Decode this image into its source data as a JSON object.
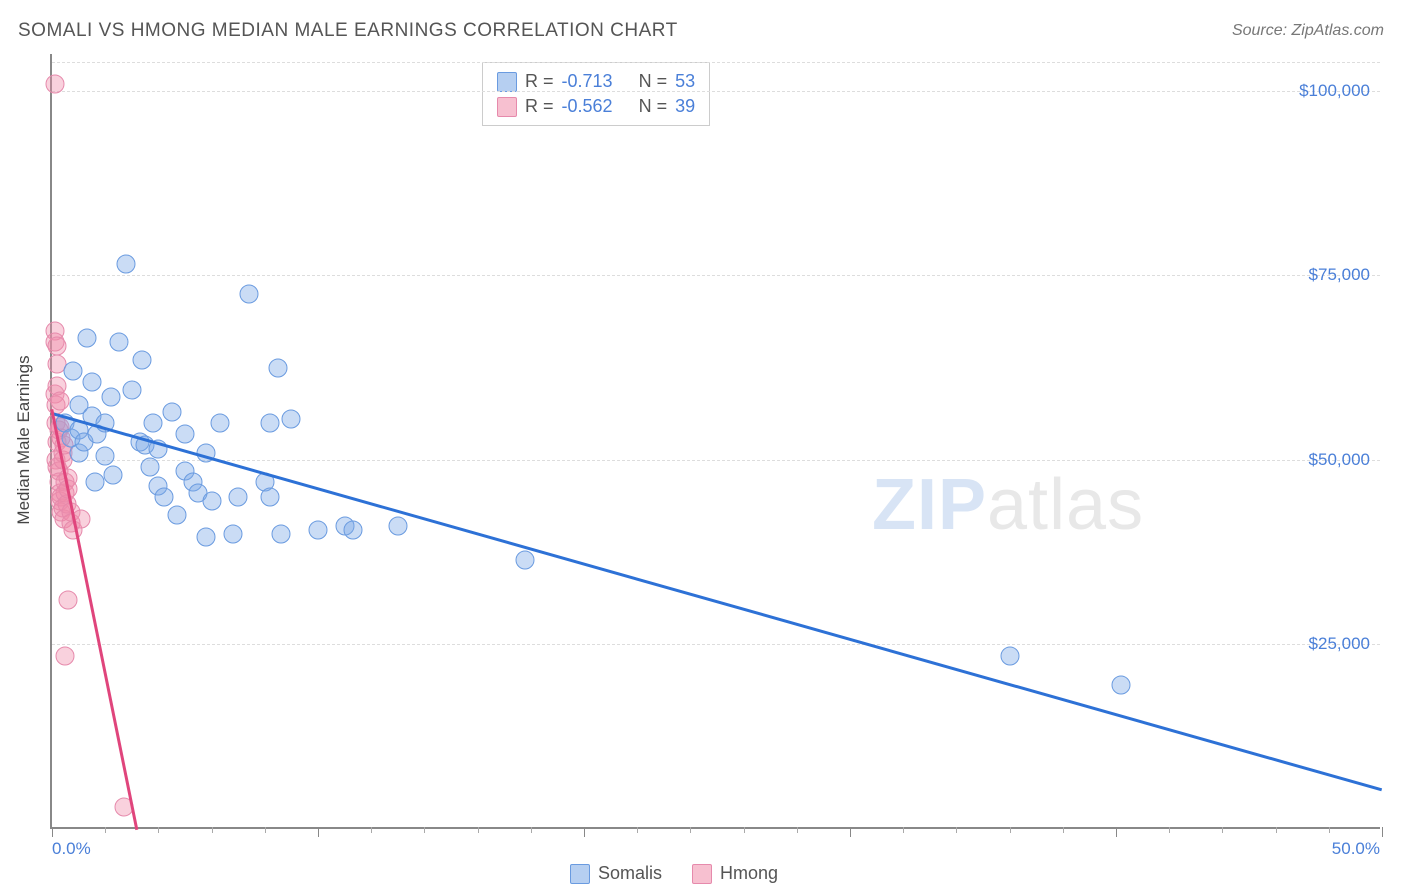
{
  "title": "SOMALI VS HMONG MEDIAN MALE EARNINGS CORRELATION CHART",
  "source": "Source: ZipAtlas.com",
  "ylabel": "Median Male Earnings",
  "watermark_a": "ZIP",
  "watermark_b": "atlas",
  "chart": {
    "type": "scatter",
    "xlim": [
      0,
      50
    ],
    "ylim": [
      0,
      105000
    ],
    "y_ticks": [
      25000,
      50000,
      75000,
      100000
    ],
    "y_tick_labels": [
      "$25,000",
      "$50,000",
      "$75,000",
      "$100,000"
    ],
    "x_tick_left": "0.0%",
    "x_tick_right": "50.0%",
    "x_major_step": 10,
    "x_minor_step": 2,
    "grid_color": "#dddddd",
    "axis_color": "#888888",
    "background": "#ffffff",
    "marker_radius": 9.5,
    "series": {
      "somalis": {
        "label": "Somalis",
        "fill": "rgba(122,168,230,0.40)",
        "stroke": "#6a9be0",
        "line_color": "#2d71d6",
        "line_width": 2.5,
        "R": "-0.713",
        "N": "53",
        "trend": {
          "x1": 0,
          "y1": 56500,
          "x2": 50,
          "y2": 5500
        },
        "points": [
          [
            0.5,
            55000
          ],
          [
            0.7,
            53000
          ],
          [
            0.8,
            62000
          ],
          [
            1.0,
            57500
          ],
          [
            1.0,
            54000
          ],
          [
            1.0,
            51000
          ],
          [
            1.2,
            52500
          ],
          [
            1.3,
            66500
          ],
          [
            1.5,
            60500
          ],
          [
            1.5,
            56000
          ],
          [
            1.6,
            47000
          ],
          [
            1.7,
            53500
          ],
          [
            2.0,
            55000
          ],
          [
            2.0,
            50500
          ],
          [
            2.2,
            58500
          ],
          [
            2.3,
            48000
          ],
          [
            2.5,
            66000
          ],
          [
            2.8,
            76500
          ],
          [
            3.0,
            59500
          ],
          [
            3.3,
            52500
          ],
          [
            3.4,
            63500
          ],
          [
            3.5,
            52000
          ],
          [
            3.7,
            49000
          ],
          [
            3.8,
            55000
          ],
          [
            4.0,
            51500
          ],
          [
            4.0,
            46500
          ],
          [
            4.2,
            45000
          ],
          [
            4.5,
            56500
          ],
          [
            4.7,
            42500
          ],
          [
            5.0,
            53500
          ],
          [
            5.0,
            48500
          ],
          [
            5.3,
            47000
          ],
          [
            5.5,
            45500
          ],
          [
            5.8,
            51000
          ],
          [
            5.8,
            39500
          ],
          [
            6.0,
            44500
          ],
          [
            6.3,
            55000
          ],
          [
            6.8,
            40000
          ],
          [
            7.0,
            45000
          ],
          [
            7.4,
            72500
          ],
          [
            8.0,
            47000
          ],
          [
            8.2,
            55000
          ],
          [
            8.2,
            45000
          ],
          [
            8.5,
            62500
          ],
          [
            8.6,
            40000
          ],
          [
            9.0,
            55500
          ],
          [
            10.0,
            40500
          ],
          [
            11.0,
            41000
          ],
          [
            11.3,
            40500
          ],
          [
            13.0,
            41000
          ],
          [
            17.8,
            36500
          ],
          [
            36.0,
            23500
          ],
          [
            40.2,
            19500
          ]
        ]
      },
      "hmong": {
        "label": "Hmong",
        "fill": "rgba(240,140,170,0.40)",
        "stroke": "#e68aac",
        "line_color": "#e0457c",
        "line_width": 2.5,
        "R": "-0.562",
        "N": "39",
        "trend": {
          "x1": 0,
          "y1": 57000,
          "x2": 3.2,
          "y2": 0
        },
        "points": [
          [
            0.1,
            101000
          ],
          [
            0.1,
            67500
          ],
          [
            0.1,
            66000
          ],
          [
            0.1,
            59000
          ],
          [
            0.15,
            57500
          ],
          [
            0.15,
            55000
          ],
          [
            0.15,
            50000
          ],
          [
            0.2,
            65500
          ],
          [
            0.2,
            63000
          ],
          [
            0.2,
            60000
          ],
          [
            0.2,
            52500
          ],
          [
            0.2,
            49000
          ],
          [
            0.25,
            54000
          ],
          [
            0.25,
            48500
          ],
          [
            0.25,
            47000
          ],
          [
            0.3,
            58000
          ],
          [
            0.3,
            54500
          ],
          [
            0.3,
            45500
          ],
          [
            0.3,
            44500
          ],
          [
            0.35,
            53000
          ],
          [
            0.35,
            45000
          ],
          [
            0.35,
            43000
          ],
          [
            0.4,
            51000
          ],
          [
            0.4,
            50000
          ],
          [
            0.4,
            43500
          ],
          [
            0.45,
            52000
          ],
          [
            0.45,
            42000
          ],
          [
            0.5,
            47000
          ],
          [
            0.5,
            45500
          ],
          [
            0.55,
            44000
          ],
          [
            0.6,
            47500
          ],
          [
            0.6,
            46000
          ],
          [
            0.7,
            43000
          ],
          [
            0.7,
            41500
          ],
          [
            0.8,
            40500
          ],
          [
            0.6,
            31000
          ],
          [
            0.5,
            23500
          ],
          [
            1.1,
            42000
          ],
          [
            2.7,
            3000
          ]
        ]
      }
    }
  },
  "legend_top": [
    {
      "swatch_fill": "rgba(122,168,230,0.55)",
      "swatch_stroke": "#6a9be0",
      "R": "-0.713",
      "N": "53"
    },
    {
      "swatch_fill": "rgba(240,140,170,0.55)",
      "swatch_stroke": "#e68aac",
      "R": "-0.562",
      "N": "39"
    }
  ],
  "legend_bottom": [
    {
      "swatch_fill": "rgba(122,168,230,0.55)",
      "swatch_stroke": "#6a9be0",
      "label": "Somalis"
    },
    {
      "swatch_fill": "rgba(240,140,170,0.55)",
      "swatch_stroke": "#e68aac",
      "label": "Hmong"
    }
  ]
}
